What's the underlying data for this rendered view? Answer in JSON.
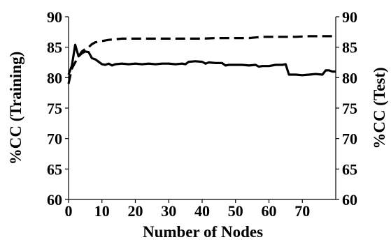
{
  "chart_data": {
    "type": "line",
    "xlabel": "Number of Nodes",
    "ylabel_left": "%CC (Training)",
    "ylabel_right": "%CC (Test)",
    "xlim": [
      0,
      80
    ],
    "ylim": [
      60,
      90
    ],
    "x_ticks": [
      "0",
      "10",
      "20",
      "30",
      "40",
      "50",
      "60",
      "70"
    ],
    "y_ticks_left": [
      "60",
      "65",
      "70",
      "75",
      "80",
      "85",
      "90"
    ],
    "y_ticks_right": [
      "60",
      "65",
      "70",
      "75",
      "80",
      "85",
      "90"
    ],
    "grid": false,
    "legend": false,
    "series": [
      {
        "style": "solid",
        "color": "#000000",
        "x": [
          0,
          1,
          2,
          3,
          4,
          5,
          6,
          7,
          8,
          9,
          10,
          11,
          12,
          13,
          14,
          16,
          18,
          20,
          22,
          24,
          26,
          28,
          30,
          32,
          34,
          35,
          36,
          38,
          40,
          41,
          42,
          44,
          46,
          47,
          48,
          50,
          52,
          54,
          56,
          57,
          58,
          60,
          62,
          64,
          65,
          66,
          67,
          68,
          70,
          72,
          74,
          76,
          77,
          78,
          79,
          80
        ],
        "y": [
          80.5,
          82.0,
          85.4,
          83.5,
          84.0,
          84.3,
          84.2,
          83.2,
          83.0,
          82.6,
          82.2,
          82.1,
          82.3,
          82.0,
          82.2,
          82.3,
          82.2,
          82.3,
          82.2,
          82.3,
          82.2,
          82.3,
          82.3,
          82.2,
          82.3,
          82.2,
          82.6,
          82.7,
          82.6,
          82.3,
          82.5,
          82.4,
          82.4,
          82.0,
          82.1,
          82.1,
          82.1,
          82.0,
          82.1,
          81.8,
          81.9,
          81.9,
          82.1,
          82.1,
          82.2,
          80.5,
          80.5,
          80.5,
          80.4,
          80.5,
          80.6,
          80.5,
          81.2,
          81.2,
          81.0,
          81.0
        ]
      },
      {
        "style": "dashed",
        "color": "#000000",
        "x": [
          0,
          1,
          2,
          3,
          4,
          5,
          6,
          7,
          8,
          10,
          11,
          12,
          14,
          16,
          20,
          24,
          28,
          32,
          36,
          40,
          44,
          48,
          50,
          52,
          54,
          56,
          58,
          60,
          64,
          68,
          72,
          76,
          80
        ],
        "y": [
          79.0,
          81.5,
          82.5,
          83.5,
          84.3,
          84.7,
          85.0,
          85.5,
          85.8,
          86.0,
          86.1,
          86.2,
          86.3,
          86.4,
          86.4,
          86.4,
          86.4,
          86.4,
          86.4,
          86.4,
          86.5,
          86.5,
          86.5,
          86.5,
          86.5,
          86.6,
          86.7,
          86.7,
          86.7,
          86.7,
          86.8,
          86.8,
          86.8
        ]
      }
    ]
  }
}
